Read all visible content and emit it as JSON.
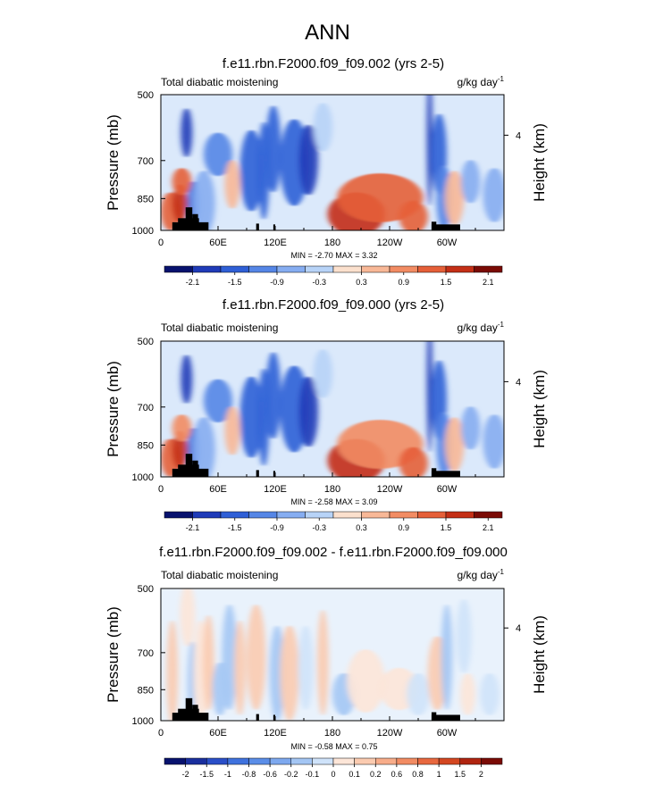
{
  "figure": {
    "title": "ANN"
  },
  "chart_data": [
    {
      "type": "heatmap",
      "title": "f.e11.rbn.F2000.f09_f09.002 (yrs 2-5)",
      "left_label": "Total diabatic moistening",
      "units_label": "g/kg day",
      "units_exponent": "-1",
      "ylabel": "Pressure (mb)",
      "ylabel_right": "Height (km)",
      "ylim": [
        1000,
        500
      ],
      "yticks": [
        "500",
        "700",
        "850",
        "1000"
      ],
      "right_ticks": [
        "4"
      ],
      "xlim": [
        0,
        360
      ],
      "xticks": [
        "0",
        "60E",
        "120E",
        "180",
        "120W",
        "60W"
      ],
      "min_max": "MIN = -2.70  MAX =  3.32",
      "colorbar_labels": [
        "-2.1",
        "-1.5",
        "-0.9",
        "-0.3",
        "0.3",
        "0.9",
        "1.5",
        "2.1"
      ],
      "features": [
        {
          "lon": 10,
          "p": 930,
          "w": 10,
          "h": 70,
          "value": 1.4
        },
        {
          "lon": 20,
          "p": 900,
          "w": 8,
          "h": 70,
          "value": 1.7
        },
        {
          "lon": 27,
          "p": 640,
          "w": 6,
          "h": 90,
          "value": -1.8
        },
        {
          "lon": 34,
          "p": 900,
          "w": 6,
          "h": 80,
          "value": -1.4
        },
        {
          "lon": 22,
          "p": 820,
          "w": 10,
          "h": 50,
          "value": 1.0
        },
        {
          "lon": 45,
          "p": 900,
          "w": 12,
          "h": 120,
          "value": -0.5
        },
        {
          "lon": 60,
          "p": 720,
          "w": 15,
          "h": 80,
          "value": -0.8
        },
        {
          "lon": 75,
          "p": 830,
          "w": 8,
          "h": 90,
          "value": 0.6
        },
        {
          "lon": 95,
          "p": 780,
          "w": 12,
          "h": 150,
          "value": -1.0
        },
        {
          "lon": 108,
          "p": 780,
          "w": 6,
          "h": 180,
          "value": -0.9
        },
        {
          "lon": 118,
          "p": 700,
          "w": 8,
          "h": 160,
          "value": -1.3
        },
        {
          "lon": 140,
          "p": 750,
          "w": 15,
          "h": 160,
          "value": -0.9
        },
        {
          "lon": 155,
          "p": 740,
          "w": 10,
          "h": 130,
          "value": -1.6
        },
        {
          "lon": 170,
          "p": 620,
          "w": 10,
          "h": 90,
          "value": -0.2
        },
        {
          "lon": 205,
          "p": 940,
          "w": 30,
          "h": 80,
          "value": 1.9
        },
        {
          "lon": 230,
          "p": 880,
          "w": 45,
          "h": 90,
          "value": 1.0
        },
        {
          "lon": 265,
          "p": 950,
          "w": 15,
          "h": 60,
          "value": 1.5
        },
        {
          "lon": 282,
          "p": 660,
          "w": 3,
          "h": 250,
          "value": -1.8
        },
        {
          "lon": 292,
          "p": 720,
          "w": 8,
          "h": 150,
          "value": -1.2
        },
        {
          "lon": 297,
          "p": 880,
          "w": 8,
          "h": 120,
          "value": -0.8
        },
        {
          "lon": 308,
          "p": 880,
          "w": 10,
          "h": 100,
          "value": 0.5
        },
        {
          "lon": 325,
          "p": 820,
          "w": 10,
          "h": 80,
          "value": -0.4
        },
        {
          "lon": 350,
          "p": 870,
          "w": 12,
          "h": 100,
          "value": -0.5
        }
      ]
    },
    {
      "type": "heatmap",
      "title": "f.e11.rbn.F2000.f09_f09.000 (yrs 2-5)",
      "left_label": "Total diabatic moistening",
      "units_label": "g/kg day",
      "units_exponent": "-1",
      "ylabel": "Pressure (mb)",
      "ylabel_right": "Height (km)",
      "ylim": [
        1000,
        500
      ],
      "yticks": [
        "500",
        "700",
        "850",
        "1000"
      ],
      "right_ticks": [
        "4"
      ],
      "xlim": [
        0,
        360
      ],
      "xticks": [
        "0",
        "60E",
        "120E",
        "180",
        "120W",
        "60W"
      ],
      "min_max": "MIN = -2.58  MAX =  3.09",
      "colorbar_labels": [
        "-2.1",
        "-1.5",
        "-0.9",
        "-0.3",
        "0.3",
        "0.9",
        "1.5",
        "2.1"
      ],
      "features": [
        {
          "lon": 10,
          "p": 930,
          "w": 10,
          "h": 70,
          "value": 1.3
        },
        {
          "lon": 20,
          "p": 900,
          "w": 8,
          "h": 70,
          "value": 1.6
        },
        {
          "lon": 27,
          "p": 640,
          "w": 6,
          "h": 90,
          "value": -1.7
        },
        {
          "lon": 34,
          "p": 900,
          "w": 6,
          "h": 80,
          "value": -1.3
        },
        {
          "lon": 22,
          "p": 820,
          "w": 10,
          "h": 50,
          "value": 0.9
        },
        {
          "lon": 45,
          "p": 900,
          "w": 12,
          "h": 120,
          "value": -0.5
        },
        {
          "lon": 60,
          "p": 720,
          "w": 15,
          "h": 80,
          "value": -0.6
        },
        {
          "lon": 75,
          "p": 830,
          "w": 8,
          "h": 90,
          "value": 0.5
        },
        {
          "lon": 95,
          "p": 780,
          "w": 12,
          "h": 150,
          "value": -1.1
        },
        {
          "lon": 108,
          "p": 780,
          "w": 6,
          "h": 180,
          "value": -1.0
        },
        {
          "lon": 118,
          "p": 700,
          "w": 8,
          "h": 160,
          "value": -1.4
        },
        {
          "lon": 140,
          "p": 750,
          "w": 15,
          "h": 160,
          "value": -1.0
        },
        {
          "lon": 155,
          "p": 760,
          "w": 10,
          "h": 130,
          "value": -1.5
        },
        {
          "lon": 170,
          "p": 620,
          "w": 10,
          "h": 90,
          "value": -0.2
        },
        {
          "lon": 205,
          "p": 940,
          "w": 30,
          "h": 80,
          "value": 1.8
        },
        {
          "lon": 230,
          "p": 880,
          "w": 45,
          "h": 90,
          "value": 0.9
        },
        {
          "lon": 265,
          "p": 950,
          "w": 15,
          "h": 60,
          "value": 1.4
        },
        {
          "lon": 282,
          "p": 660,
          "w": 3,
          "h": 250,
          "value": -1.9
        },
        {
          "lon": 292,
          "p": 720,
          "w": 8,
          "h": 150,
          "value": -1.3
        },
        {
          "lon": 297,
          "p": 880,
          "w": 8,
          "h": 120,
          "value": -0.7
        },
        {
          "lon": 308,
          "p": 880,
          "w": 10,
          "h": 100,
          "value": 0.6
        },
        {
          "lon": 325,
          "p": 820,
          "w": 10,
          "h": 80,
          "value": -0.4
        },
        {
          "lon": 350,
          "p": 870,
          "w": 12,
          "h": 100,
          "value": -0.5
        }
      ]
    },
    {
      "type": "heatmap",
      "title": "f.e11.rbn.F2000.f09_f09.002 - f.e11.rbn.F2000.f09_f09.000",
      "left_label": "Total diabatic moistening",
      "units_label": "g/kg day",
      "units_exponent": "-1",
      "ylabel": "Pressure (mb)",
      "ylabel_right": "Height (km)",
      "ylim": [
        1000,
        500
      ],
      "yticks": [
        "500",
        "700",
        "850",
        "1000"
      ],
      "right_ticks": [
        "4"
      ],
      "xlim": [
        0,
        360
      ],
      "xticks": [
        "0",
        "60E",
        "120E",
        "180",
        "120W",
        "60W"
      ],
      "min_max": "MIN = -0.58  MAX =  0.75",
      "colorbar_labels": [
        "-2",
        "-1.5",
        "-1",
        "-0.8",
        "-0.6",
        "-0.2",
        "-0.1",
        "0",
        "0.1",
        "0.2",
        "0.6",
        "0.8",
        "1",
        "1.5",
        "2"
      ],
      "features": [
        {
          "lon": 12,
          "p": 820,
          "w": 6,
          "h": 200,
          "value": 0.12
        },
        {
          "lon": 28,
          "p": 600,
          "w": 8,
          "h": 120,
          "value": 0.08
        },
        {
          "lon": 33,
          "p": 860,
          "w": 5,
          "h": 160,
          "value": -0.1
        },
        {
          "lon": 42,
          "p": 820,
          "w": 8,
          "h": 200,
          "value": 0.1
        },
        {
          "lon": 50,
          "p": 780,
          "w": 6,
          "h": 180,
          "value": 0.15
        },
        {
          "lon": 62,
          "p": 880,
          "w": 8,
          "h": 100,
          "value": -0.1
        },
        {
          "lon": 72,
          "p": 760,
          "w": 8,
          "h": 200,
          "value": -0.12
        },
        {
          "lon": 83,
          "p": 800,
          "w": 6,
          "h": 180,
          "value": 0.12
        },
        {
          "lon": 100,
          "p": 760,
          "w": 10,
          "h": 200,
          "value": 0.12
        },
        {
          "lon": 122,
          "p": 820,
          "w": 8,
          "h": 180,
          "value": -0.1
        },
        {
          "lon": 135,
          "p": 820,
          "w": 10,
          "h": 180,
          "value": 0.12
        },
        {
          "lon": 152,
          "p": 800,
          "w": 8,
          "h": 160,
          "value": -0.08
        },
        {
          "lon": 170,
          "p": 780,
          "w": 6,
          "h": 200,
          "value": 0.12
        },
        {
          "lon": 192,
          "p": 900,
          "w": 12,
          "h": 80,
          "value": -0.12
        },
        {
          "lon": 215,
          "p": 850,
          "w": 20,
          "h": 120,
          "value": 0.06
        },
        {
          "lon": 250,
          "p": 880,
          "w": 20,
          "h": 80,
          "value": 0.08
        },
        {
          "lon": 270,
          "p": 900,
          "w": 12,
          "h": 80,
          "value": -0.08
        },
        {
          "lon": 290,
          "p": 820,
          "w": 10,
          "h": 140,
          "value": 0.15
        },
        {
          "lon": 300,
          "p": 760,
          "w": 6,
          "h": 200,
          "value": -0.1
        },
        {
          "lon": 318,
          "p": 680,
          "w": 8,
          "h": 140,
          "value": -0.06
        },
        {
          "lon": 322,
          "p": 900,
          "w": 8,
          "h": 80,
          "value": 0.08
        },
        {
          "lon": 345,
          "p": 900,
          "w": 10,
          "h": 80,
          "value": -0.06
        }
      ]
    }
  ],
  "colors": {
    "divergent_scale_12": [
      "#08126e",
      "#1f3bb8",
      "#2f5fd6",
      "#5586e6",
      "#86adf1",
      "#b7d3f7",
      "#fbe0cd",
      "#f8b897",
      "#f28c63",
      "#e55f38",
      "#c42f16",
      "#7a0b05"
    ],
    "divergent_scale_16": [
      "#08126e",
      "#1a2f9e",
      "#2a4fc8",
      "#3f72de",
      "#5b8ee8",
      "#7ea9ef",
      "#a4c6f4",
      "#cfe3fa",
      "#fde6d8",
      "#fbcbb0",
      "#f8ad8a",
      "#f28c63",
      "#e8683f",
      "#d44721",
      "#b02410",
      "#7a0b05"
    ],
    "topography": "#000000"
  }
}
